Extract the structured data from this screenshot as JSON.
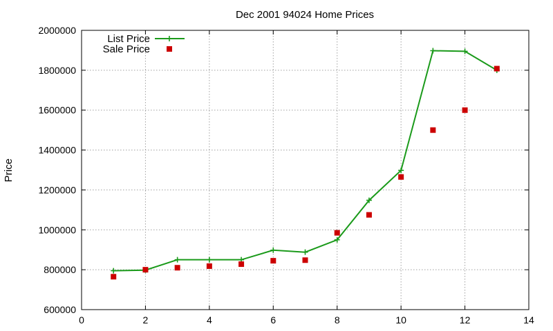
{
  "chart_data": {
    "type": "line",
    "title": "Dec 2001 94024 Home Prices",
    "xlabel": "",
    "ylabel": "Price",
    "xlim": [
      0,
      14
    ],
    "ylim": [
      600000,
      2000000
    ],
    "xticks": [
      0,
      2,
      4,
      6,
      8,
      10,
      12,
      14
    ],
    "yticks": [
      600000,
      800000,
      1000000,
      1200000,
      1400000,
      1600000,
      1800000,
      2000000
    ],
    "xtick_labels": [
      "0",
      "2",
      "4",
      "6",
      "8",
      "10",
      "12",
      "14"
    ],
    "ytick_labels": [
      "600000",
      "800000",
      "1000000",
      "1200000",
      "1400000",
      "1600000",
      "1800000",
      "2000000"
    ],
    "grid": true,
    "legend_position": "top-left",
    "series": [
      {
        "name": "List Price",
        "style": "linespoints",
        "marker": "plus",
        "color": "#1a9a1a",
        "x": [
          1,
          2,
          3,
          4,
          5,
          6,
          7,
          8,
          9,
          10,
          11,
          12,
          13
        ],
        "y": [
          795000,
          798000,
          850000,
          850000,
          850000,
          898000,
          888000,
          950000,
          1148000,
          1298000,
          1898000,
          1895000,
          1800000
        ]
      },
      {
        "name": "Sale Price",
        "style": "points",
        "marker": "square",
        "color": "#cc0000",
        "x": [
          1,
          2,
          3,
          4,
          5,
          6,
          7,
          8,
          9,
          10,
          11,
          12,
          13
        ],
        "y": [
          765000,
          800000,
          810000,
          818000,
          828000,
          845000,
          848000,
          985000,
          1075000,
          1265000,
          1500000,
          1600000,
          1808000
        ]
      }
    ]
  }
}
